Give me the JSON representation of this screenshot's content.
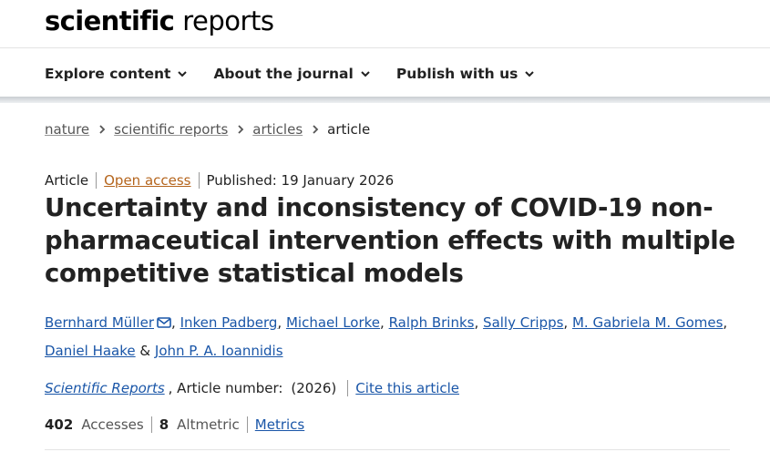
{
  "header": {
    "logo_bold": "scientific",
    "logo_light": "reports"
  },
  "nav": {
    "items": [
      {
        "label": "Explore content",
        "icon": "chevron-down-icon"
      },
      {
        "label": "About the journal",
        "icon": "chevron-down-icon"
      },
      {
        "label": "Publish with us",
        "icon": "chevron-down-icon"
      }
    ]
  },
  "breadcrumb": {
    "items": [
      "nature",
      "scientific reports",
      "articles"
    ],
    "current": "article"
  },
  "article": {
    "type": "Article",
    "access": "Open access",
    "published": "Published: 19 January 2026",
    "title": "Uncertainty and inconsistency of COVID-19 non-pharmaceutical intervention effects with multiple competitive statistical models",
    "authors": [
      "Bernhard Müller",
      "Inken Padberg",
      "Michael Lorke",
      "Ralph Brinks",
      "Sally Cripps",
      "M. Gabriela M. Gomes",
      "Daniel Haake",
      "John P. A. Ioannidis"
    ],
    "author_sep": ",",
    "author_and": "&",
    "journal": "Scientific Reports",
    "article_number_label": ", Article number:",
    "year": "(2026)",
    "cite_label": "Cite this article"
  },
  "metrics": {
    "accesses_value": "402",
    "accesses_label": "Accesses",
    "altmetric_value": "8",
    "altmetric_label": "Altmetric",
    "metrics_link": "Metrics"
  },
  "colors": {
    "link": "#1a56a8",
    "open_access": "#b5651d",
    "text": "#222222"
  }
}
